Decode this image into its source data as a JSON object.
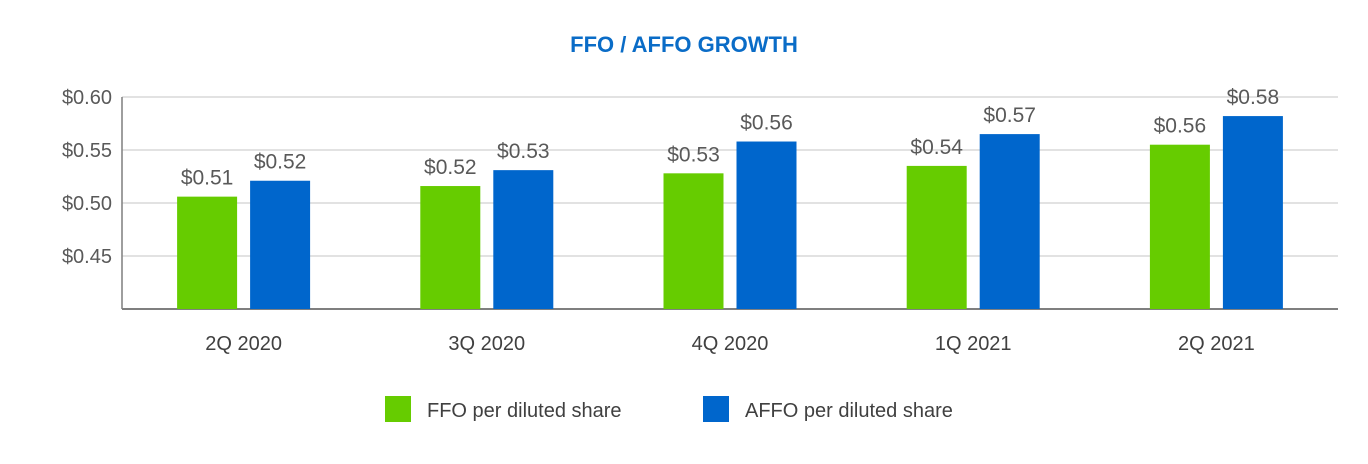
{
  "colors": {
    "title": "#0a6cc7",
    "ffo": "#66cc00",
    "affo": "#0066cc",
    "grid": "#d9d9d9",
    "axis": "#7f7f7f"
  },
  "chart_data": {
    "type": "bar",
    "title": "FFO / AFFO GROWTH",
    "xlabel": "",
    "ylabel": "",
    "ylim": [
      0.4,
      0.6
    ],
    "yticks": [
      {
        "value": 0.45,
        "label": "$0.45"
      },
      {
        "value": 0.5,
        "label": "$0.50"
      },
      {
        "value": 0.55,
        "label": "$0.55"
      },
      {
        "value": 0.6,
        "label": "$0.60"
      }
    ],
    "grid": true,
    "legend_position": "bottom",
    "categories": [
      "2Q 2020",
      "3Q 2020",
      "4Q 2020",
      "1Q 2021",
      "2Q 2021"
    ],
    "series": [
      {
        "name": "FFO per diluted share",
        "color": "#66cc00",
        "values": [
          0.506,
          0.516,
          0.528,
          0.535,
          0.555
        ],
        "labels": [
          "$0.51",
          "$0.52",
          "$0.53",
          "$0.54",
          "$0.56"
        ]
      },
      {
        "name": "AFFO per diluted share",
        "color": "#0066cc",
        "values": [
          0.521,
          0.531,
          0.558,
          0.565,
          0.582
        ],
        "labels": [
          "$0.52",
          "$0.53",
          "$0.56",
          "$0.57",
          "$0.58"
        ]
      }
    ]
  }
}
